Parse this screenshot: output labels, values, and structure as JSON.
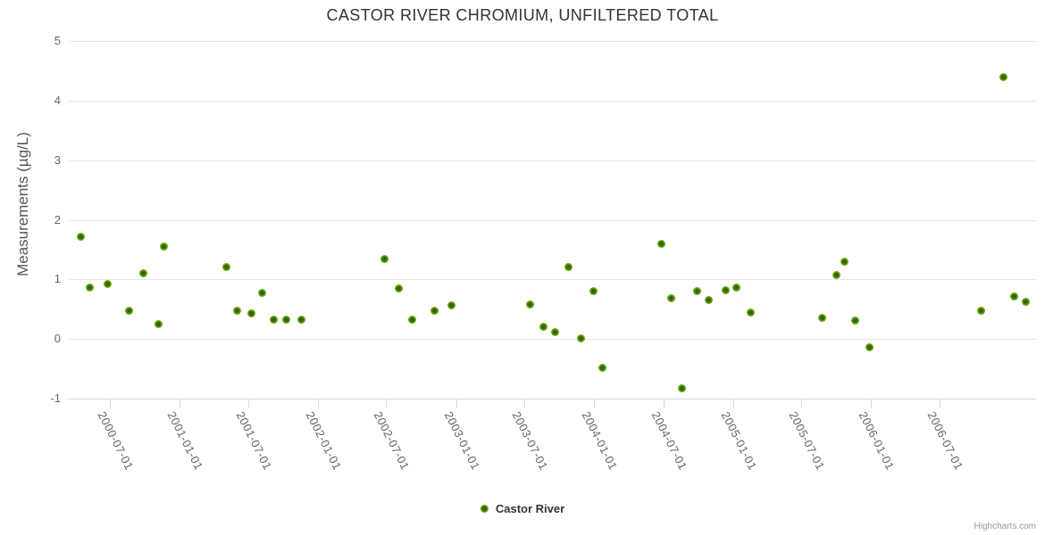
{
  "credits": "Highcharts.com",
  "colors": {
    "title": "#333333",
    "axis_label": "#666666",
    "grid": "#e6e6e6",
    "axis_line": "#ccd6eb",
    "marker": "#7cb300",
    "marker_center": "#2f6302",
    "credits": "#999999"
  },
  "chart_data": {
    "type": "scatter",
    "title": "CASTOR RIVER CHROMIUM, UNFILTERED TOTAL",
    "xlabel": "",
    "ylabel": "Measurements (µg/L)",
    "ylim": [
      -1,
      5
    ],
    "yticks": [
      5,
      4,
      3,
      2,
      1,
      0,
      -1
    ],
    "xlim": [
      "2000-03-15",
      "2007-03-12"
    ],
    "xticks": [
      "2000-07-01",
      "2001-01-01",
      "2001-07-01",
      "2002-01-01",
      "2002-07-01",
      "2003-01-01",
      "2003-07-01",
      "2004-01-01",
      "2004-07-01",
      "2005-01-01",
      "2005-07-01",
      "2006-01-01",
      "2006-07-01"
    ],
    "grid": "horizontal",
    "legend_position": "bottom-center",
    "series": [
      {
        "name": "Castor River",
        "color": "#7cb300",
        "points": [
          {
            "date": "2000-04-17",
            "value": 1.72
          },
          {
            "date": "2000-05-10",
            "value": 0.87
          },
          {
            "date": "2000-06-26",
            "value": 0.93
          },
          {
            "date": "2000-08-20",
            "value": 0.47
          },
          {
            "date": "2000-09-29",
            "value": 1.1
          },
          {
            "date": "2000-11-06",
            "value": 0.25
          },
          {
            "date": "2000-11-21",
            "value": 1.55
          },
          {
            "date": "2001-05-06",
            "value": 1.2
          },
          {
            "date": "2001-06-03",
            "value": 0.48
          },
          {
            "date": "2001-07-11",
            "value": 0.43
          },
          {
            "date": "2001-08-08",
            "value": 0.77
          },
          {
            "date": "2001-09-08",
            "value": 0.33
          },
          {
            "date": "2001-10-11",
            "value": 0.33
          },
          {
            "date": "2001-11-20",
            "value": 0.33
          },
          {
            "date": "2002-06-27",
            "value": 1.34
          },
          {
            "date": "2002-08-04",
            "value": 0.85
          },
          {
            "date": "2002-09-08",
            "value": 0.32
          },
          {
            "date": "2002-11-06",
            "value": 0.47
          },
          {
            "date": "2002-12-21",
            "value": 0.56
          },
          {
            "date": "2003-07-16",
            "value": 0.58
          },
          {
            "date": "2003-08-20",
            "value": 0.2
          },
          {
            "date": "2003-09-20",
            "value": 0.12
          },
          {
            "date": "2003-10-25",
            "value": 1.21
          },
          {
            "date": "2003-11-26",
            "value": 0.01
          },
          {
            "date": "2003-12-31",
            "value": 0.8
          },
          {
            "date": "2004-01-23",
            "value": -0.49
          },
          {
            "date": "2004-06-26",
            "value": 1.6
          },
          {
            "date": "2004-07-23",
            "value": 0.68
          },
          {
            "date": "2004-08-20",
            "value": -0.83
          },
          {
            "date": "2004-09-29",
            "value": 0.81
          },
          {
            "date": "2004-10-28",
            "value": 0.66
          },
          {
            "date": "2004-12-12",
            "value": 0.82
          },
          {
            "date": "2005-01-10",
            "value": 0.87
          },
          {
            "date": "2005-02-17",
            "value": 0.45
          },
          {
            "date": "2005-08-25",
            "value": 0.36
          },
          {
            "date": "2005-10-02",
            "value": 1.07
          },
          {
            "date": "2005-10-23",
            "value": 1.3
          },
          {
            "date": "2005-11-20",
            "value": 0.31
          },
          {
            "date": "2005-12-28",
            "value": -0.14
          },
          {
            "date": "2006-10-18",
            "value": 0.47
          },
          {
            "date": "2006-12-16",
            "value": 4.4
          },
          {
            "date": "2007-01-14",
            "value": 0.72
          },
          {
            "date": "2007-02-13",
            "value": 0.63
          }
        ]
      }
    ]
  }
}
